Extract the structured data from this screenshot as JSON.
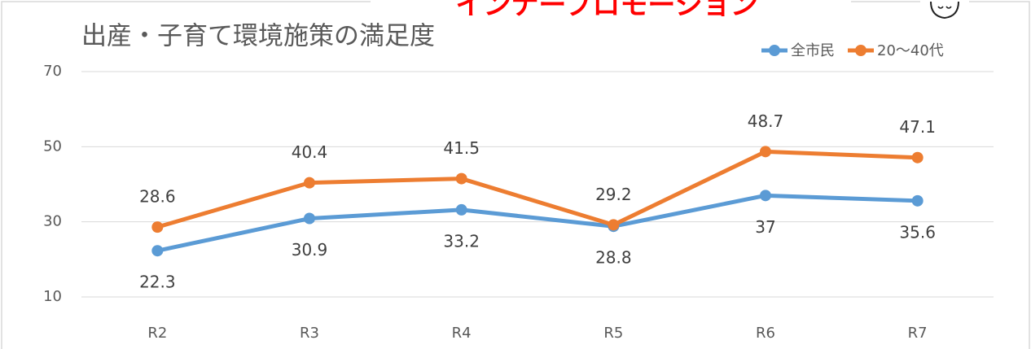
{
  "chart_data": {
    "type": "line",
    "title": "出産・子育て環境施策の満足度",
    "annotation": "インナープロモーション",
    "categories": [
      "R2",
      "R3",
      "R4",
      "R5",
      "R6",
      "R7"
    ],
    "series": [
      {
        "name": "全市民",
        "color": "#5b9bd5",
        "values": [
          22.3,
          30.9,
          33.2,
          28.8,
          37,
          35.6
        ],
        "label_position": "below"
      },
      {
        "name": "20〜40代",
        "color": "#ed7d31",
        "values": [
          28.6,
          40.4,
          41.5,
          29.2,
          48.7,
          47.1
        ],
        "label_position": "above"
      }
    ],
    "ylim": [
      10,
      70
    ],
    "yticks": [
      10,
      30,
      50,
      70
    ],
    "grid": true,
    "legend": "top-right"
  }
}
